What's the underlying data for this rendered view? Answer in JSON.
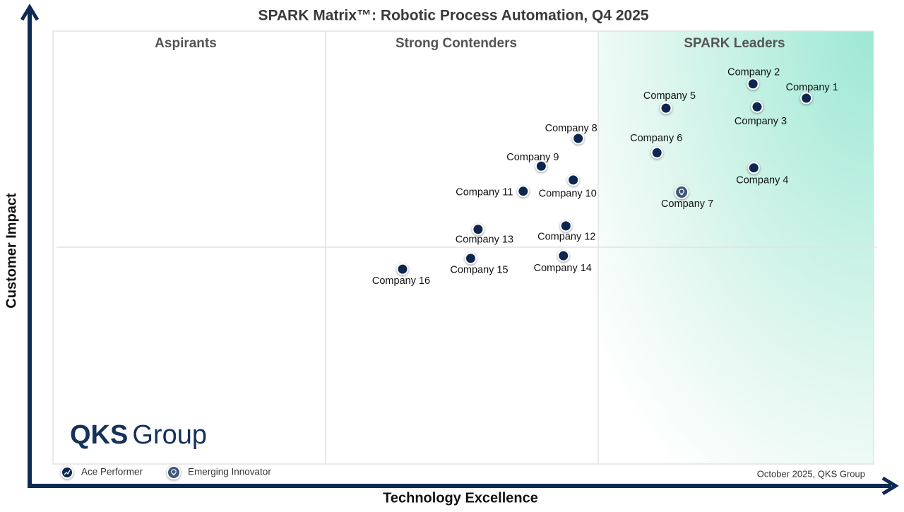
{
  "chart_data": {
    "type": "scatter",
    "title": "SPARK Matrix™: Robotic Process Automation, Q4 2025",
    "xlabel": "Technology Excellence",
    "ylabel": "Customer Impact",
    "quadrants": [
      "Aspirants",
      "Strong Contenders",
      "SPARK Leaders"
    ],
    "brand": {
      "bold": "QKS",
      "light": "Group"
    },
    "footer": "October 2025, QKS Group",
    "xlim": [
      0,
      100
    ],
    "ylim": [
      0,
      100
    ],
    "series": [
      {
        "name": "Ace Performer",
        "color": "#0d2750",
        "labels": [
          "Company 1",
          "Company 2",
          "Company 3",
          "Company 4",
          "Company 5",
          "Company 6",
          "Company 8",
          "Company 9",
          "Company 10",
          "Company 11",
          "Company 12",
          "Company 13",
          "Company 14",
          "Company 15",
          "Company 16"
        ],
        "x": [
          91.8,
          85.3,
          85.8,
          85.4,
          74.7,
          73.6,
          64.0,
          59.5,
          63.4,
          57.3,
          62.5,
          51.8,
          62.2,
          50.9,
          42.6
        ],
        "values": [
          84.5,
          87.8,
          82.5,
          68.4,
          82.2,
          71.9,
          75.2,
          68.8,
          65.6,
          63.0,
          55.0,
          54.2,
          48.1,
          47.5,
          45.0
        ]
      },
      {
        "name": "Emerging Innovator",
        "color": "#3d5678",
        "labels": [
          "Company 7"
        ],
        "x": [
          76.6
        ],
        "values": [
          62.8
        ]
      }
    ]
  }
}
